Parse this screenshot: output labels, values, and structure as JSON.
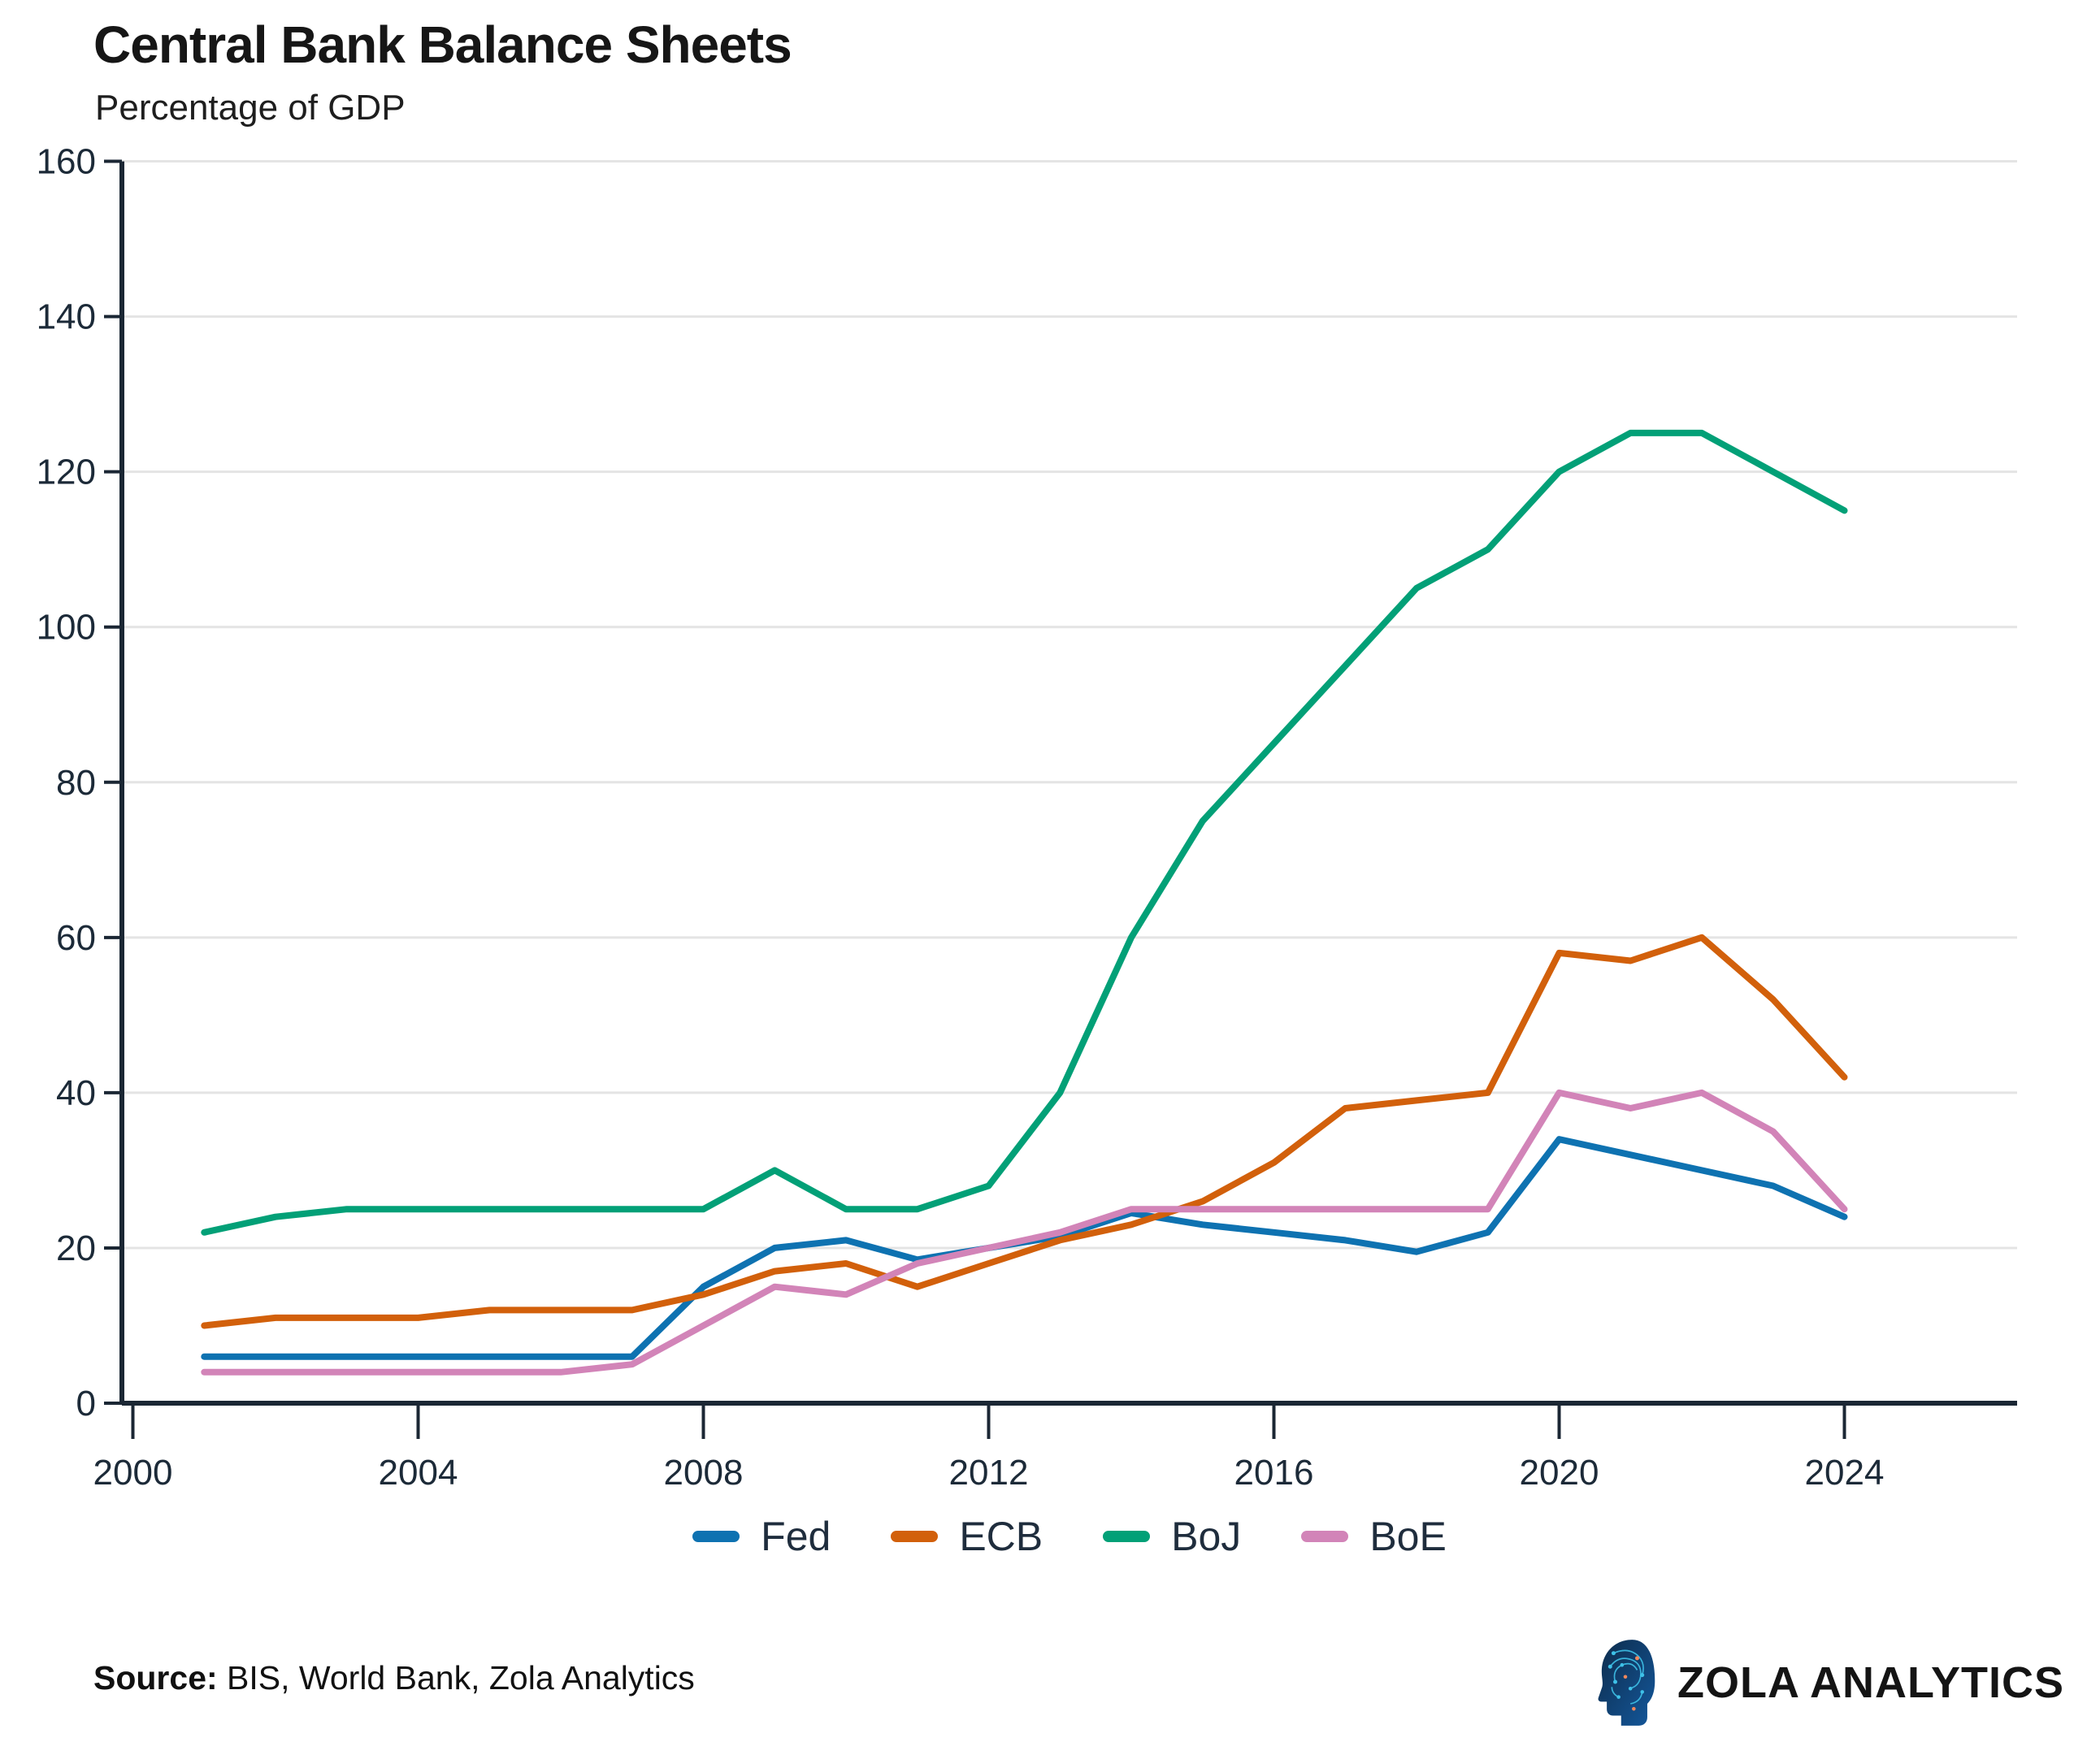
{
  "header": {
    "title": "Central Bank Balance Sheets",
    "subtitle": "Percentage of GDP"
  },
  "colors": {
    "fed": "#0e72b1",
    "ecb": "#d2600b",
    "boj": "#02a077",
    "boe": "#d284b8",
    "axis": "#1b2734",
    "grid": "#e4e4e4",
    "tick_text": "#1c2a38"
  },
  "chart_data": {
    "type": "line",
    "title": "Central Bank Balance Sheets",
    "ylabel": "Percentage of GDP",
    "xlabel": "",
    "grid": "horizontal",
    "legend_position": "bottom",
    "xlim": [
      2000,
      2026.4
    ],
    "ylim": [
      0,
      160
    ],
    "x_ticks": [
      2000,
      2004,
      2008,
      2012,
      2016,
      2020,
      2024
    ],
    "y_ticks": [
      0,
      20,
      40,
      60,
      80,
      100,
      120,
      140,
      160
    ],
    "x": [
      2001,
      2002,
      2003,
      2004,
      2005,
      2006,
      2007,
      2008,
      2009,
      2010,
      2011,
      2012,
      2013,
      2014,
      2015,
      2016,
      2017,
      2018,
      2019,
      2020,
      2021,
      2022,
      2023,
      2024
    ],
    "series": [
      {
        "name": "Fed",
        "color_key": "fed",
        "values": [
          6,
          6,
          6,
          6,
          6,
          6,
          6,
          15,
          20,
          21,
          18.5,
          20,
          21.5,
          24.5,
          23,
          22,
          21,
          19.5,
          22,
          34,
          32,
          30,
          28,
          24
        ]
      },
      {
        "name": "ECB",
        "color_key": "ecb",
        "values": [
          10,
          11,
          11,
          11,
          12,
          12,
          12,
          14,
          17,
          18,
          15,
          18,
          21,
          23,
          26,
          31,
          38,
          39,
          40,
          58,
          57,
          60,
          52,
          42
        ]
      },
      {
        "name": "BoJ",
        "color_key": "boj",
        "values": [
          22,
          24,
          25,
          25,
          25,
          25,
          25,
          25,
          30,
          25,
          25,
          28,
          40,
          60,
          75,
          85,
          95,
          105,
          110,
          120,
          125,
          125,
          120,
          115
        ]
      },
      {
        "name": "BoE",
        "color_key": "boe",
        "values": [
          4,
          4,
          4,
          4,
          4,
          4,
          5,
          10,
          15,
          14,
          18,
          20,
          22,
          25,
          25,
          25,
          25,
          25,
          25,
          40,
          38,
          40,
          35,
          25
        ]
      }
    ]
  },
  "footer": {
    "source_label": "Source:",
    "source_text": " BIS, World Bank, Zola Analytics",
    "brand_name": "ZOLA ANALYTICS",
    "brand_icon": "circuit-head-icon"
  }
}
